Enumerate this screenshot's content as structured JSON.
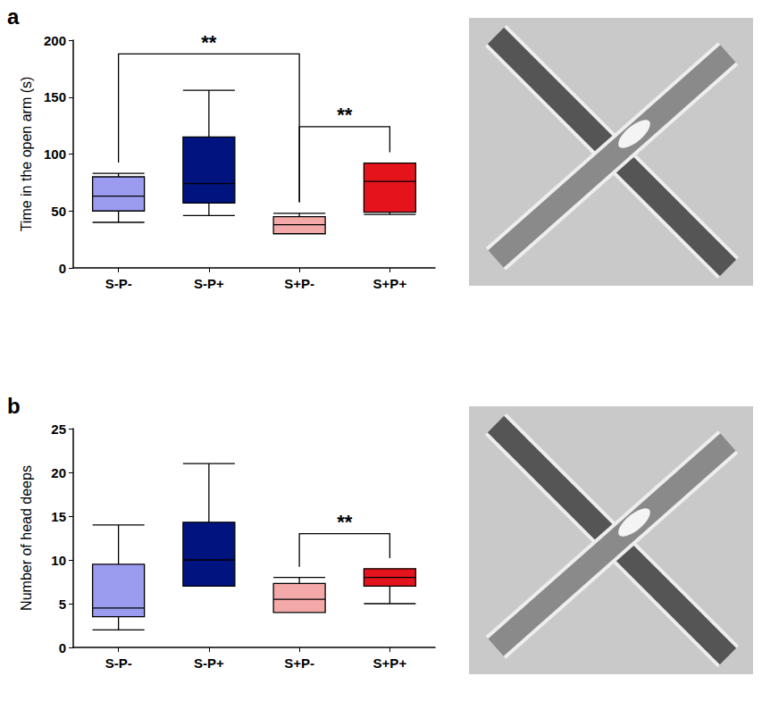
{
  "chart_data": [
    {
      "type": "boxplot",
      "label": "a",
      "y_label": "Time in the open arm (s)",
      "categories": [
        "S-P-",
        "S-P+",
        "S+P-",
        "S+P+"
      ],
      "values": [
        [
          40,
          50,
          63,
          80,
          83
        ],
        [
          46,
          57,
          74,
          115,
          156
        ],
        [
          30,
          30,
          38,
          45,
          48
        ],
        [
          47,
          49,
          76,
          92,
          92
        ]
      ],
      "colors": [
        "#9b9cf0",
        "#00137f",
        "#f4a9a9",
        "#e5141c"
      ],
      "ylim": [
        0,
        200
      ],
      "yticks": [
        0,
        50,
        100,
        150,
        200
      ],
      "grid": false,
      "annotations": [
        {
          "from": "S-P-",
          "to": "S+P-",
          "text": "**"
        },
        {
          "from": "S+P-",
          "to": "S+P+",
          "text": "**"
        }
      ]
    },
    {
      "type": "boxplot",
      "label": "b",
      "y_label": "Number of head deeps",
      "categories": [
        "S-P-",
        "S-P+",
        "S+P-",
        "S+P+"
      ],
      "values": [
        [
          2,
          3.5,
          4.5,
          9.5,
          14
        ],
        [
          7,
          7,
          10,
          14.3,
          21
        ],
        [
          4,
          4,
          5.5,
          7.3,
          8
        ],
        [
          5,
          7,
          8,
          9,
          9
        ]
      ],
      "colors": [
        "#9b9cf0",
        "#00137f",
        "#f4a9a9",
        "#e5141c"
      ],
      "ylim": [
        0,
        25
      ],
      "yticks": [
        0,
        5,
        10,
        15,
        20,
        25
      ],
      "grid": false,
      "annotations": [
        {
          "from": "S+P-",
          "to": "S+P+",
          "text": "**"
        }
      ]
    }
  ]
}
